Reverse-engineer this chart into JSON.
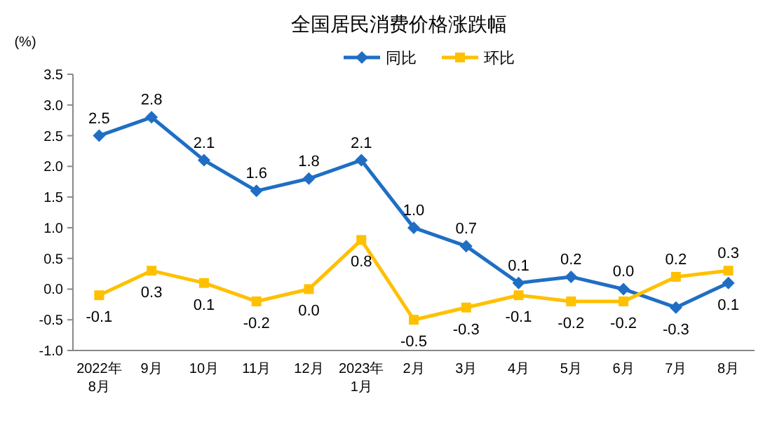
{
  "chart_data": {
    "type": "line",
    "title": "全国居民消费价格涨跌幅",
    "ylabel": "(%)",
    "categories": [
      "2022年\n8月",
      "9月",
      "10月",
      "11月",
      "12月",
      "2023年\n1月",
      "2月",
      "3月",
      "4月",
      "5月",
      "6月",
      "7月",
      "8月"
    ],
    "series": [
      {
        "name": "同比",
        "color": "#1f6ec4",
        "marker": "diamond",
        "values": [
          2.5,
          2.8,
          2.1,
          1.6,
          1.8,
          2.1,
          1.0,
          0.7,
          0.1,
          0.2,
          0.0,
          -0.3,
          0.1
        ],
        "value_labels": [
          "2.5",
          "2.8",
          "2.1",
          "1.6",
          "1.8",
          "2.1",
          "1.0",
          "0.7",
          "0.1",
          "0.2",
          "0.0",
          "-0.3",
          "0.1"
        ]
      },
      {
        "name": "环比",
        "color": "#ffc000",
        "marker": "square",
        "values": [
          -0.1,
          0.3,
          0.1,
          -0.2,
          0.0,
          0.8,
          -0.5,
          -0.3,
          -0.1,
          -0.2,
          -0.2,
          0.2,
          0.3
        ],
        "value_labels": [
          "-0.1",
          "0.3",
          "0.1",
          "-0.2",
          "0.0",
          "0.8",
          "-0.5",
          "-0.3",
          "-0.1",
          "-0.2",
          "-0.2",
          "0.2",
          "0.3"
        ]
      }
    ],
    "ylim": [
      -1.0,
      3.5
    ],
    "yticks": [
      {
        "value": -1.0,
        "label": "-1.0"
      },
      {
        "value": -0.5,
        "label": "-0.5"
      },
      {
        "value": 0.0,
        "label": "0.0"
      },
      {
        "value": 0.5,
        "label": "0.5"
      },
      {
        "value": 1.0,
        "label": "1.0"
      },
      {
        "value": 1.5,
        "label": "1.5"
      },
      {
        "value": 2.0,
        "label": "2.0"
      },
      {
        "value": 2.5,
        "label": "2.5"
      },
      {
        "value": 3.0,
        "label": "3.0"
      },
      {
        "value": 3.5,
        "label": "3.5"
      }
    ],
    "legend": "top",
    "grid": false,
    "line_style": "solid"
  }
}
